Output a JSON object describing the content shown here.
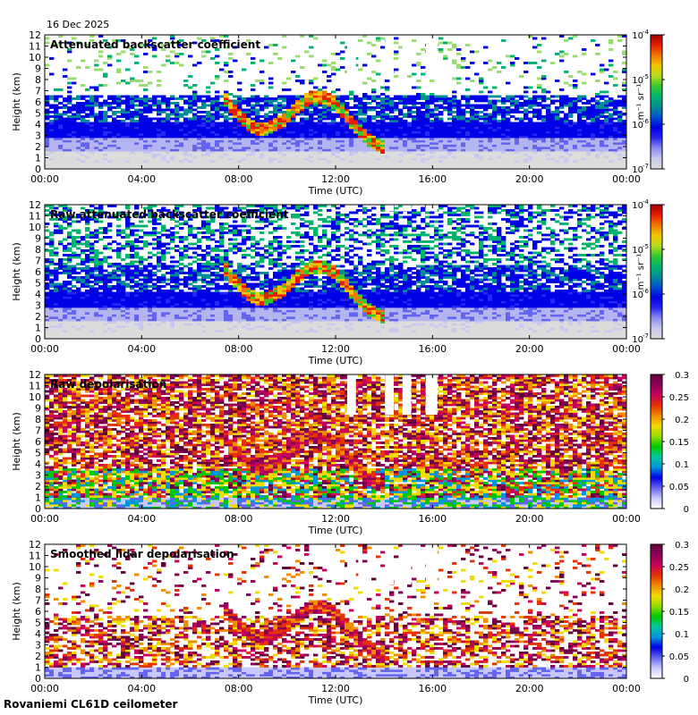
{
  "date": "16 Dec 2025",
  "footer": "Rovaniemi CL61D ceilometer",
  "chart_data": [
    {
      "type": "heatmap",
      "title": "Attenuated backscatter coefficient",
      "xlabel": "Time (UTC)",
      "ylabel": "Height (km)",
      "xticks": [
        "00:00",
        "04:00",
        "08:00",
        "12:00",
        "16:00",
        "20:00",
        "00:00"
      ],
      "yticks": [
        0,
        1,
        2,
        3,
        4,
        5,
        6,
        7,
        8,
        9,
        10,
        11,
        12
      ],
      "ylim": [
        0,
        12
      ],
      "colorbar": {
        "scale": "log",
        "ticks": [
          "10",
          "10",
          "10",
          "10"
        ],
        "exponents": [
          "-7",
          "-6",
          "-5",
          "-4"
        ],
        "unit": "m-1 sr-1"
      }
    },
    {
      "type": "heatmap",
      "title": "Raw attenuated backscatter coefficient",
      "xlabel": "Time (UTC)",
      "ylabel": "Height (km)",
      "xticks": [
        "00:00",
        "04:00",
        "08:00",
        "12:00",
        "16:00",
        "20:00",
        "00:00"
      ],
      "yticks": [
        0,
        1,
        2,
        3,
        4,
        5,
        6,
        7,
        8,
        9,
        10,
        11,
        12
      ],
      "ylim": [
        0,
        12
      ],
      "colorbar": {
        "scale": "log",
        "ticks": [
          "10",
          "10",
          "10",
          "10"
        ],
        "exponents": [
          "-7",
          "-6",
          "-5",
          "-4"
        ],
        "unit": "m-1 sr-1"
      }
    },
    {
      "type": "heatmap",
      "title": "Raw depolarisation",
      "xlabel": "Time (UTC)",
      "ylabel": "Height (km)",
      "xticks": [
        "00:00",
        "04:00",
        "08:00",
        "12:00",
        "16:00",
        "20:00",
        "00:00"
      ],
      "yticks": [
        0,
        1,
        2,
        3,
        4,
        5,
        6,
        7,
        8,
        9,
        10,
        11,
        12
      ],
      "ylim": [
        0,
        12
      ],
      "colorbar": {
        "scale": "linear",
        "ticks": [
          "0",
          "0.05",
          "0.1",
          "0.15",
          "0.2",
          "0.25",
          "0.3"
        ],
        "unit": ""
      }
    },
    {
      "type": "heatmap",
      "title": "Smoothed lidar depolarisation",
      "xlabel": "Time (UTC)",
      "ylabel": "Height (km)",
      "xticks": [
        "00:00",
        "04:00",
        "08:00",
        "12:00",
        "16:00",
        "20:00",
        "00:00"
      ],
      "yticks": [
        0,
        1,
        2,
        3,
        4,
        5,
        6,
        7,
        8,
        9,
        10,
        11,
        12
      ],
      "ylim": [
        0,
        12
      ],
      "colorbar": {
        "scale": "linear",
        "ticks": [
          "0",
          "0.05",
          "0.1",
          "0.15",
          "0.2",
          "0.25",
          "0.3"
        ],
        "unit": ""
      }
    }
  ]
}
